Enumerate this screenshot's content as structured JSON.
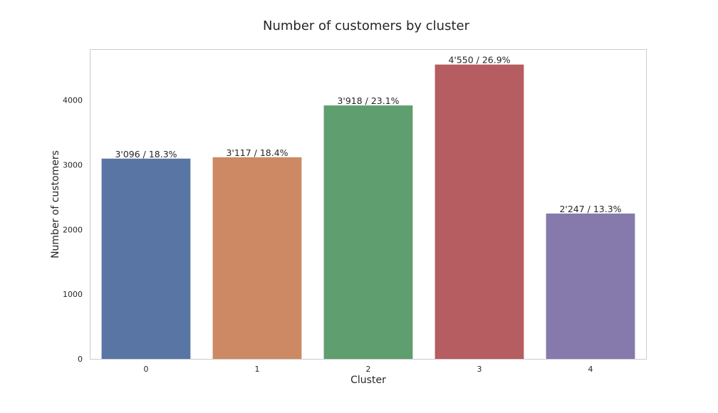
{
  "chart_data": {
    "type": "bar",
    "title": "Number of customers by cluster",
    "xlabel": "Cluster",
    "ylabel": "Number of customers",
    "categories": [
      "0",
      "1",
      "2",
      "3",
      "4"
    ],
    "values": [
      3096,
      3117,
      3918,
      4550,
      2247
    ],
    "data_labels": [
      "3'096 / 18.3%",
      "3'117 / 18.4%",
      "3'918 / 23.1%",
      "4'550 / 26.9%",
      "2'247 / 13.3%"
    ],
    "colors": [
      "#5975a4",
      "#cc8963",
      "#5f9e6e",
      "#b55d60",
      "#857aab"
    ],
    "yticks": [
      0,
      1000,
      2000,
      3000,
      4000
    ],
    "ylim": [
      0,
      4777.5
    ],
    "grid": false,
    "legend": "none"
  }
}
